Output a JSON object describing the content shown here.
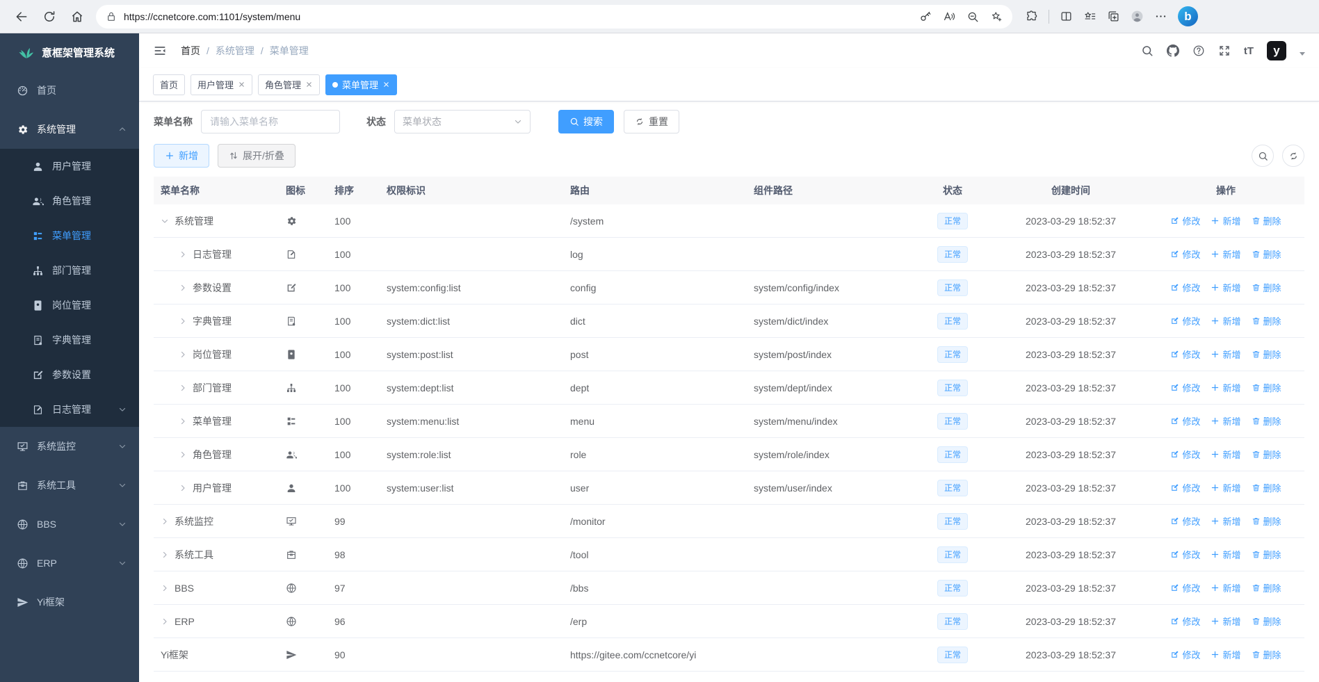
{
  "browser": {
    "url": "https://ccnetcore.com:1101/system/menu",
    "bing_glyph": "b"
  },
  "colors": {
    "primary": "#409eff",
    "sidebar_bg": "#304156",
    "sidebar_sub_bg": "#1f2d3d",
    "badge_bg": "#ecf5ff",
    "badge_text": "#409eff"
  },
  "sidebar": {
    "title": "意框架管理系统",
    "items": [
      {
        "id": "home",
        "label": "首页",
        "icon": "dashboard",
        "level": 0,
        "chevron": null,
        "active": false,
        "open": false
      },
      {
        "id": "system",
        "label": "系统管理",
        "icon": "gear",
        "level": 0,
        "chevron": "up",
        "active": false,
        "open": true
      },
      {
        "id": "user",
        "label": "用户管理",
        "icon": "user",
        "level": 1,
        "chevron": null,
        "active": false,
        "open": false
      },
      {
        "id": "role",
        "label": "角色管理",
        "icon": "users",
        "level": 1,
        "chevron": null,
        "active": false,
        "open": false
      },
      {
        "id": "menu",
        "label": "菜单管理",
        "icon": "tree",
        "level": 1,
        "chevron": null,
        "active": true,
        "open": false
      },
      {
        "id": "dept",
        "label": "部门管理",
        "icon": "org",
        "level": 1,
        "chevron": null,
        "active": false,
        "open": false
      },
      {
        "id": "post",
        "label": "岗位管理",
        "icon": "badge",
        "level": 1,
        "chevron": null,
        "active": false,
        "open": false
      },
      {
        "id": "dict",
        "label": "字典管理",
        "icon": "book",
        "level": 1,
        "chevron": null,
        "active": false,
        "open": false
      },
      {
        "id": "config",
        "label": "参数设置",
        "icon": "edit",
        "level": 1,
        "chevron": null,
        "active": false,
        "open": false
      },
      {
        "id": "log",
        "label": "日志管理",
        "icon": "log",
        "level": 1,
        "chevron": "down",
        "active": false,
        "open": false
      },
      {
        "id": "monitor",
        "label": "系统监控",
        "icon": "monitor",
        "level": 0,
        "chevron": "down",
        "active": false,
        "open": false
      },
      {
        "id": "tool",
        "label": "系统工具",
        "icon": "toolbox",
        "level": 0,
        "chevron": "down",
        "active": false,
        "open": false
      },
      {
        "id": "bbs",
        "label": "BBS",
        "icon": "globe",
        "level": 0,
        "chevron": "down",
        "active": false,
        "open": false
      },
      {
        "id": "erp",
        "label": "ERP",
        "icon": "globe",
        "level": 0,
        "chevron": "down",
        "active": false,
        "open": false
      },
      {
        "id": "yi",
        "label": "Yi框架",
        "icon": "send",
        "level": 0,
        "chevron": null,
        "active": false,
        "open": false
      }
    ]
  },
  "header": {
    "font_size_glyph": "tT",
    "avatar_glyph": "y"
  },
  "breadcrumb": {
    "items": [
      "首页",
      "系统管理",
      "菜单管理"
    ]
  },
  "tabs": [
    {
      "label": "首页",
      "closable": false,
      "active": false
    },
    {
      "label": "用户管理",
      "closable": true,
      "active": false
    },
    {
      "label": "角色管理",
      "closable": true,
      "active": false
    },
    {
      "label": "菜单管理",
      "closable": true,
      "active": true
    }
  ],
  "filters": {
    "name_label": "菜单名称",
    "name_placeholder": "请输入菜单名称",
    "name_value": "",
    "status_label": "状态",
    "status_placeholder": "菜单状态",
    "search_label": "搜索",
    "reset_label": "重置"
  },
  "toolbar": {
    "add_label": "新增",
    "expand_label": "展开/折叠"
  },
  "table": {
    "columns": [
      "菜单名称",
      "图标",
      "排序",
      "权限标识",
      "路由",
      "组件路径",
      "状态",
      "创建时间",
      "操作"
    ],
    "actions": {
      "edit": "修改",
      "add": "新增",
      "delete": "删除"
    },
    "rows": [
      {
        "name": "系统管理",
        "icon": "gear",
        "sort": "100",
        "perms": "",
        "route": "/system",
        "component": "",
        "status": "正常",
        "created": "2023-03-29 18:52:37",
        "level": 0,
        "chevron": "expanded"
      },
      {
        "name": "日志管理",
        "icon": "log",
        "sort": "100",
        "perms": "",
        "route": "log",
        "component": "",
        "status": "正常",
        "created": "2023-03-29 18:52:37",
        "level": 1,
        "chevron": "collapsed"
      },
      {
        "name": "参数设置",
        "icon": "edit",
        "sort": "100",
        "perms": "system:config:list",
        "route": "config",
        "component": "system/config/index",
        "status": "正常",
        "created": "2023-03-29 18:52:37",
        "level": 1,
        "chevron": "collapsed"
      },
      {
        "name": "字典管理",
        "icon": "book",
        "sort": "100",
        "perms": "system:dict:list",
        "route": "dict",
        "component": "system/dict/index",
        "status": "正常",
        "created": "2023-03-29 18:52:37",
        "level": 1,
        "chevron": "collapsed"
      },
      {
        "name": "岗位管理",
        "icon": "badge",
        "sort": "100",
        "perms": "system:post:list",
        "route": "post",
        "component": "system/post/index",
        "status": "正常",
        "created": "2023-03-29 18:52:37",
        "level": 1,
        "chevron": "collapsed"
      },
      {
        "name": "部门管理",
        "icon": "org",
        "sort": "100",
        "perms": "system:dept:list",
        "route": "dept",
        "component": "system/dept/index",
        "status": "正常",
        "created": "2023-03-29 18:52:37",
        "level": 1,
        "chevron": "collapsed"
      },
      {
        "name": "菜单管理",
        "icon": "tree",
        "sort": "100",
        "perms": "system:menu:list",
        "route": "menu",
        "component": "system/menu/index",
        "status": "正常",
        "created": "2023-03-29 18:52:37",
        "level": 1,
        "chevron": "collapsed"
      },
      {
        "name": "角色管理",
        "icon": "users",
        "sort": "100",
        "perms": "system:role:list",
        "route": "role",
        "component": "system/role/index",
        "status": "正常",
        "created": "2023-03-29 18:52:37",
        "level": 1,
        "chevron": "collapsed"
      },
      {
        "name": "用户管理",
        "icon": "user",
        "sort": "100",
        "perms": "system:user:list",
        "route": "user",
        "component": "system/user/index",
        "status": "正常",
        "created": "2023-03-29 18:52:37",
        "level": 1,
        "chevron": "collapsed"
      },
      {
        "name": "系统监控",
        "icon": "monitor",
        "sort": "99",
        "perms": "",
        "route": "/monitor",
        "component": "",
        "status": "正常",
        "created": "2023-03-29 18:52:37",
        "level": 0,
        "chevron": "collapsed"
      },
      {
        "name": "系统工具",
        "icon": "toolbox",
        "sort": "98",
        "perms": "",
        "route": "/tool",
        "component": "",
        "status": "正常",
        "created": "2023-03-29 18:52:37",
        "level": 0,
        "chevron": "collapsed"
      },
      {
        "name": "BBS",
        "icon": "globe",
        "sort": "97",
        "perms": "",
        "route": "/bbs",
        "component": "",
        "status": "正常",
        "created": "2023-03-29 18:52:37",
        "level": 0,
        "chevron": "collapsed"
      },
      {
        "name": "ERP",
        "icon": "globe",
        "sort": "96",
        "perms": "",
        "route": "/erp",
        "component": "",
        "status": "正常",
        "created": "2023-03-29 18:52:37",
        "level": 0,
        "chevron": "collapsed"
      },
      {
        "name": "Yi框架",
        "icon": "send",
        "sort": "90",
        "perms": "",
        "route": "https://gitee.com/ccnetcore/yi",
        "component": "",
        "status": "正常",
        "created": "2023-03-29 18:52:37",
        "level": 0,
        "chevron": "none"
      }
    ]
  }
}
